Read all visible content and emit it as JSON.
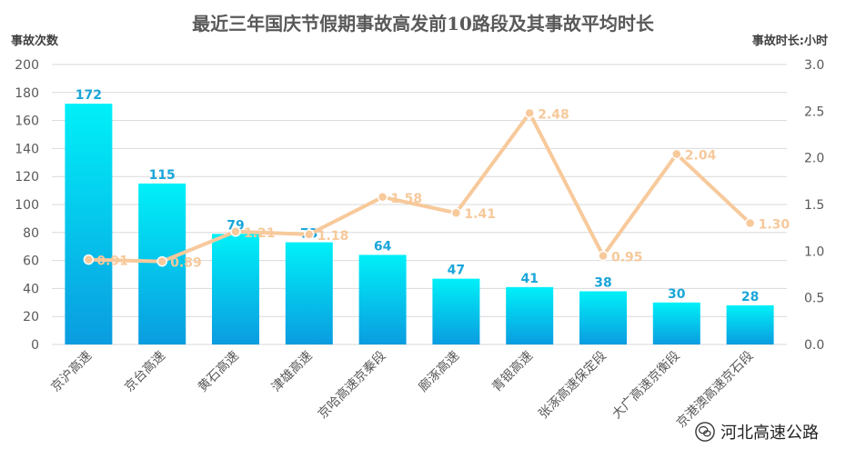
{
  "chart_data": {
    "type": "bar+line",
    "title": "最近三年国庆节假期事故高发前10路段及其事故平均时长",
    "ylabel_left": "事故次数",
    "ylabel_right": "事故时长:小时",
    "categories": [
      "京沪高速",
      "京台高速",
      "黄石高速",
      "津雄高速",
      "京哈高速京秦段",
      "廊涿高速",
      "青银高速",
      "张涿高速保定段",
      "大广高速京衡段",
      "京港澳高速京石段"
    ],
    "series": [
      {
        "type": "bar",
        "axis": "left",
        "values": [
          172,
          115,
          79,
          73,
          64,
          47,
          41,
          38,
          30,
          28
        ],
        "labels": [
          "172",
          "115",
          "79",
          "73",
          "64",
          "47",
          "41",
          "38",
          "30",
          "28"
        ]
      },
      {
        "type": "line",
        "axis": "right",
        "values": [
          0.91,
          0.89,
          1.21,
          1.18,
          1.58,
          1.41,
          2.48,
          0.95,
          2.04,
          1.3
        ],
        "labels": [
          "0.91",
          "0.89",
          "1.21",
          "1.18",
          "1.58",
          "1.41",
          "2.48",
          "0.95",
          "2.04",
          "1.30"
        ]
      }
    ],
    "ylim_left": [
      0,
      200
    ],
    "yticks_left": [
      "0",
      "20",
      "40",
      "60",
      "80",
      "100",
      "120",
      "140",
      "160",
      "180",
      "200"
    ],
    "ylim_right": [
      0,
      3.0
    ],
    "yticks_right": [
      "0.0",
      "0.5",
      "1.0",
      "1.5",
      "2.0",
      "2.5",
      "3.0"
    ],
    "grid": true,
    "colors": {
      "bar_top": "#00f0f8",
      "bar_bottom": "#0a9ce0",
      "bar_label": "#1aa6d9",
      "line": "#f7c99b",
      "line_label": "#f7c99b",
      "grid": "#d9d9d9",
      "tick": "#595959"
    }
  },
  "watermark": {
    "icon": "wechat-icon",
    "text": "河北高速公路"
  }
}
